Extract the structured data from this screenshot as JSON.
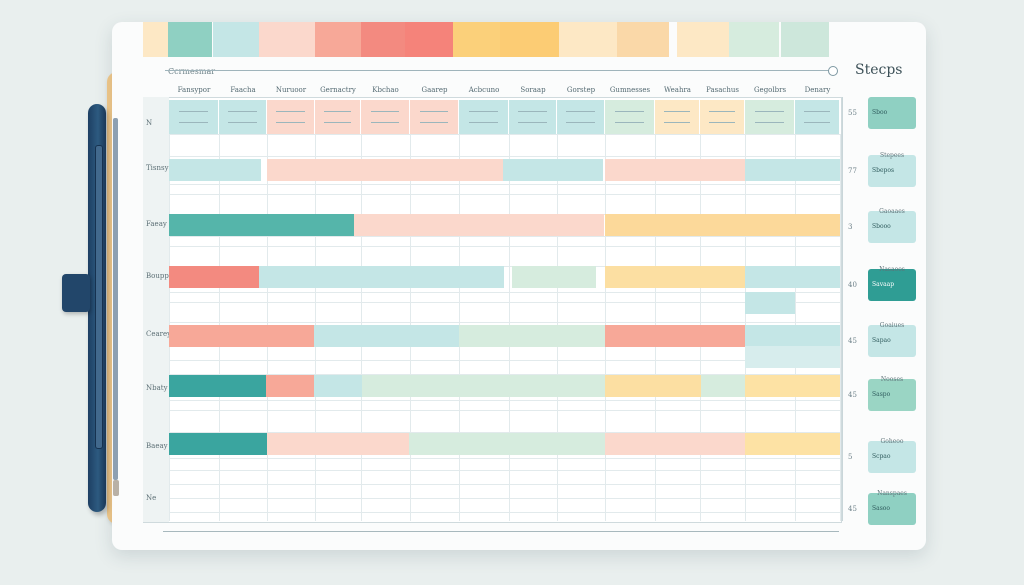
{
  "window": {
    "small_title": "Ccrmesmar",
    "big_title": "Stecps"
  },
  "palette": {
    "teal": "#8fd0c2",
    "teal_dark": "#55b5aa",
    "aqua": "#c4e6e6",
    "peach": "#fbd8cc",
    "salmon": "#f7a898",
    "coral": "#f38a80",
    "mango": "#fbd07a",
    "cream": "#fde8c5",
    "sage": "#d6ecde"
  },
  "columns": [
    "Fansypor",
    "Faacha",
    "Nuruoor",
    "Gernactry",
    "Kbchao",
    "Gaarep",
    "Acbcuno",
    "Soraap",
    "Gorstep",
    "Gumnesses",
    "Weahra",
    "Pasachus",
    "Gegolbrs",
    "Denary"
  ],
  "rows": [
    {
      "label": "N"
    },
    {
      "label": "Tisnsy"
    },
    {
      "label": "Faeay"
    },
    {
      "label": "Boupp"
    },
    {
      "label": "Cearey"
    },
    {
      "label": "Nbaty"
    },
    {
      "label": "Baeay"
    },
    {
      "label": "Ne"
    }
  ],
  "sidebar": {
    "indices": [
      "55",
      "77",
      "3",
      "40",
      "45",
      "45",
      "5",
      "45"
    ],
    "cards": [
      {
        "label": "Sboo"
      },
      {
        "label": "Sbepos"
      },
      {
        "label": "Sbooo"
      },
      {
        "label": "Savaap"
      },
      {
        "label": "Sapao"
      },
      {
        "label": "Saspo"
      },
      {
        "label": "Scpao"
      },
      {
        "label": "Sasoo"
      }
    ],
    "captions": [
      "",
      "Stepees",
      "Gaoaaes",
      "Nasaoos",
      "Goaiues",
      "Nooses",
      "Goheoo",
      "Nanspaes"
    ]
  }
}
